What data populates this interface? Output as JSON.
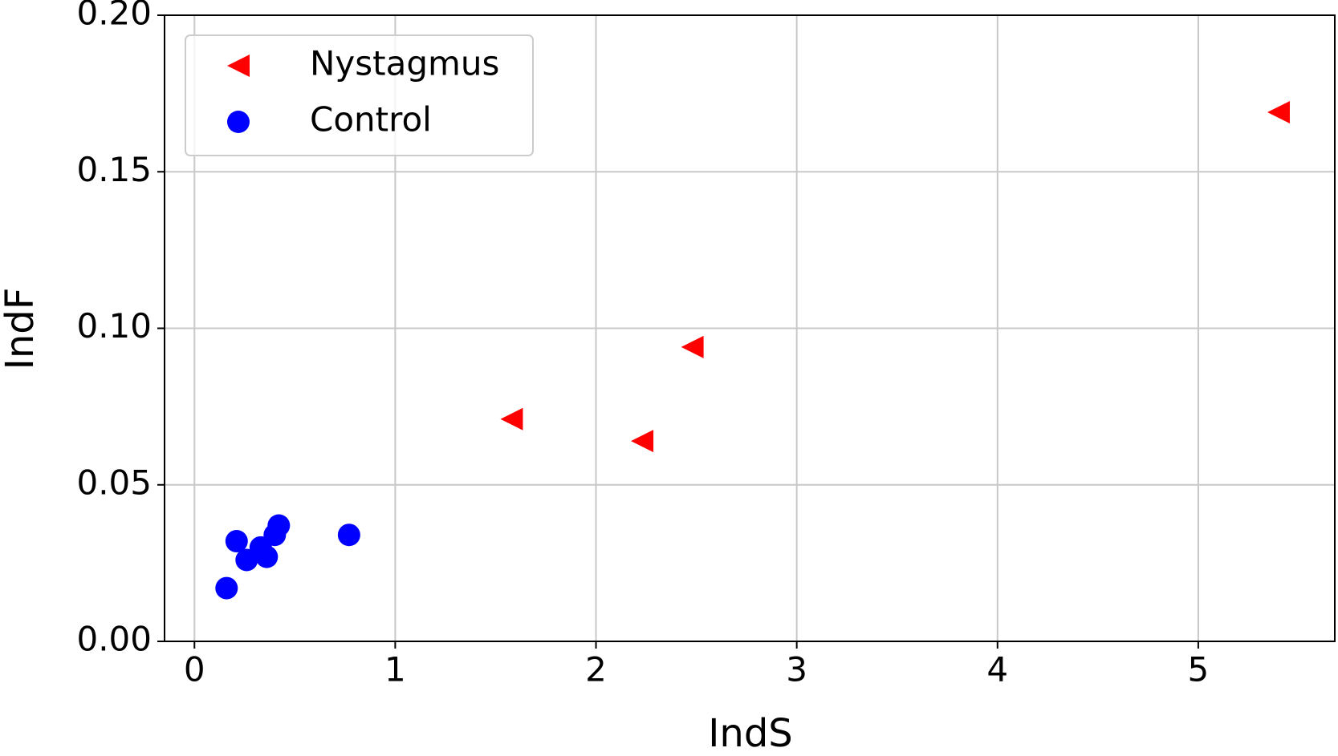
{
  "chart_data": {
    "type": "scatter",
    "xlabel": "IndS",
    "ylabel": "IndF",
    "xlim": [
      -0.149,
      5.68
    ],
    "ylim": [
      0,
      0.2
    ],
    "xticks": [
      0,
      1,
      2,
      3,
      4,
      5
    ],
    "yticks": [
      {
        "value": 0,
        "label": "0.00"
      },
      {
        "value": 0.05,
        "label": "0.05"
      },
      {
        "value": 0.1,
        "label": "0.10"
      },
      {
        "value": 0.15,
        "label": "0.15"
      },
      {
        "value": 0.2,
        "label": "0.20"
      }
    ],
    "grid": true,
    "legend": "upper left",
    "series": [
      {
        "name": "Nystagmus",
        "color": "#ff0000",
        "marker": "triangle-left",
        "x": [
          1.58,
          2.23,
          2.48,
          5.4
        ],
        "values": [
          0.071,
          0.064,
          0.094,
          0.169
        ]
      },
      {
        "name": "Control",
        "color": "#0000ff",
        "marker": "circle",
        "x": [
          0.16,
          0.21,
          0.26,
          0.33,
          0.36,
          0.4,
          0.42,
          0.77
        ],
        "values": [
          0.017,
          0.032,
          0.026,
          0.03,
          0.027,
          0.034,
          0.037,
          0.034
        ]
      }
    ]
  }
}
